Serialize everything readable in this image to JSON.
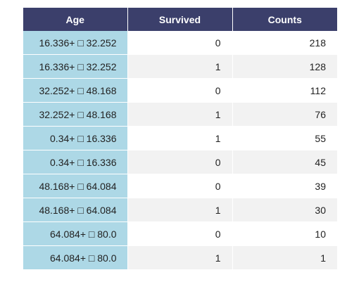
{
  "table": {
    "headers": [
      "Age",
      "Survived",
      "Counts"
    ],
    "rows": [
      {
        "age": "16.336+ □ 32.252",
        "survived": "0",
        "counts": "218"
      },
      {
        "age": "16.336+ □ 32.252",
        "survived": "1",
        "counts": "128"
      },
      {
        "age": "32.252+ □ 48.168",
        "survived": "0",
        "counts": "112"
      },
      {
        "age": "32.252+ □ 48.168",
        "survived": "1",
        "counts": "76"
      },
      {
        "age": "0.34+ □ 16.336",
        "survived": "1",
        "counts": "55"
      },
      {
        "age": "0.34+ □ 16.336",
        "survived": "0",
        "counts": "45"
      },
      {
        "age": "48.168+ □ 64.084",
        "survived": "0",
        "counts": "39"
      },
      {
        "age": "48.168+ □ 64.084",
        "survived": "1",
        "counts": "30"
      },
      {
        "age": "64.084+ □ 80.0",
        "survived": "0",
        "counts": "10"
      },
      {
        "age": "64.084+ □ 80.0",
        "survived": "1",
        "counts": "1"
      }
    ]
  },
  "colors": {
    "header_bg": "#3b3f6b",
    "index_bg": "#add8e6",
    "stripe_bg": "#f2f2f2"
  }
}
